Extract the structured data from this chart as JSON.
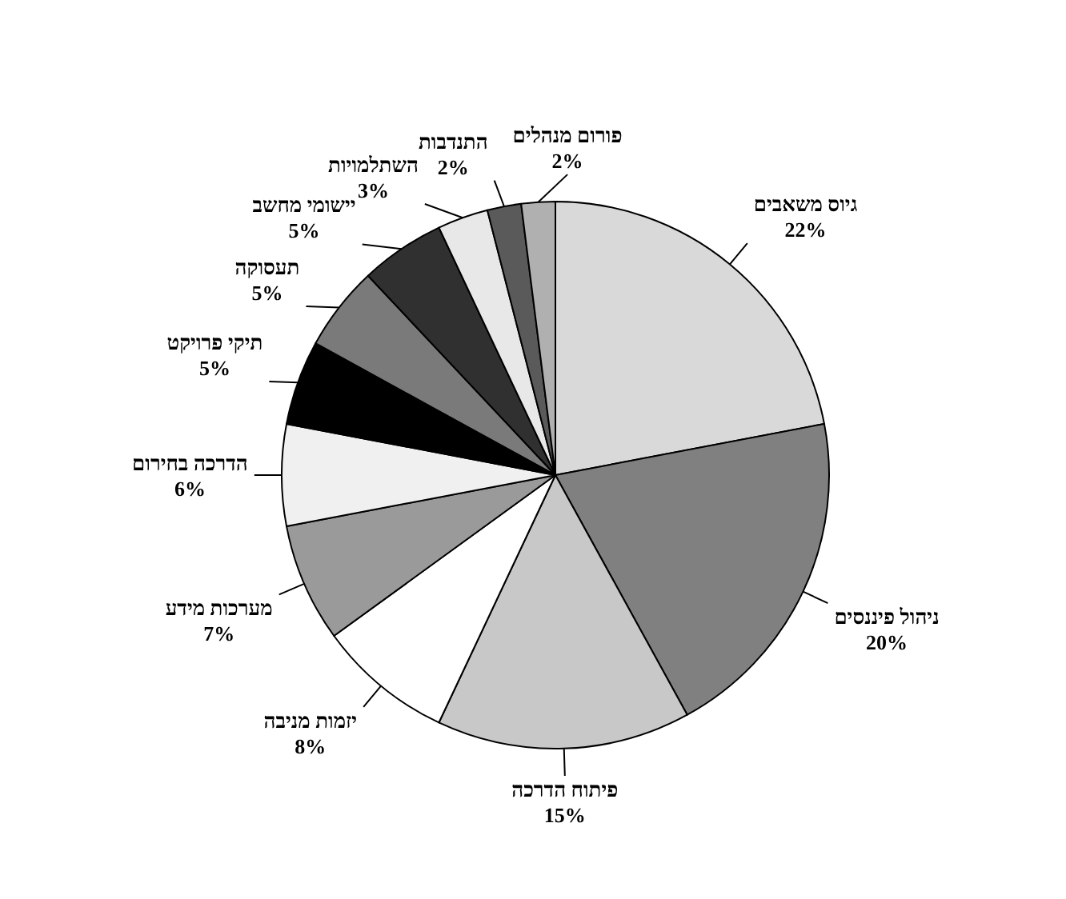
{
  "chart_data": {
    "type": "pie",
    "categories": [
      "גיוס משאבים",
      "ניהול פיננסים",
      "פיתוח הדרכה",
      "יזמות מניבה",
      "מערכות מידע",
      "הדרכה בחירום",
      "תיקי פרויקט",
      "תעסוקה",
      "יישומי מחשב",
      "השתלמויות",
      "התנדבות",
      "פורום מנהלים"
    ],
    "values": [
      22,
      20,
      15,
      8,
      7,
      6,
      5,
      5,
      5,
      3,
      2,
      2
    ],
    "value_labels": [
      "22%",
      "20%",
      "15%",
      "8%",
      "7%",
      "6%",
      "5%",
      "5%",
      "5%",
      "3%",
      "2%",
      "2%"
    ],
    "colors": [
      "#d9d9d9",
      "#808080",
      "#c8c8c8",
      "#ffffff",
      "#9a9a9a",
      "#f0f0f0",
      "#000000",
      "#7a7a7a",
      "#303030",
      "#e8e8e8",
      "#5a5a5a",
      "#b0b0b0"
    ]
  }
}
